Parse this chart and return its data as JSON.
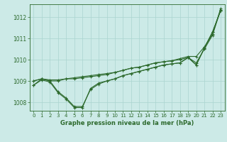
{
  "background_color": "#cceae7",
  "grid_color": "#aad4d0",
  "line_color": "#2d6a2d",
  "xlabel": "Graphe pression niveau de la mer (hPa)",
  "xlim": [
    -0.5,
    23.5
  ],
  "ylim": [
    1007.6,
    1012.6
  ],
  "yticks": [
    1008,
    1009,
    1010,
    1011,
    1012
  ],
  "xticks": [
    0,
    1,
    2,
    3,
    4,
    5,
    6,
    7,
    8,
    9,
    10,
    11,
    12,
    13,
    14,
    15,
    16,
    17,
    18,
    19,
    20,
    21,
    22,
    23
  ],
  "series": [
    [
      1009.0,
      1009.1,
      1009.0,
      1009.0,
      1009.1,
      1009.1,
      1009.15,
      1009.2,
      1009.25,
      1009.3,
      1009.4,
      1009.5,
      1009.6,
      1009.65,
      1009.75,
      1009.85,
      1009.9,
      1009.95,
      1010.0,
      1010.1,
      1009.85,
      1010.5,
      1011.15,
      1012.35
    ],
    [
      1008.8,
      1009.1,
      1009.0,
      1008.5,
      1008.2,
      1007.8,
      1007.8,
      1008.6,
      1008.85,
      1009.0,
      1009.1,
      1009.25,
      1009.35,
      1009.45,
      1009.55,
      1009.65,
      1009.75,
      1009.8,
      1009.85,
      1010.1,
      1009.75,
      1010.55,
      1011.3,
      1012.3
    ],
    [
      1008.8,
      1009.05,
      1008.95,
      1008.45,
      1008.15,
      1007.75,
      1007.75,
      1008.65,
      1008.9,
      1009.0,
      1009.1,
      1009.25,
      1009.35,
      1009.45,
      1009.55,
      1009.65,
      1009.75,
      1009.8,
      1009.85,
      1010.1,
      1009.75,
      1010.55,
      1011.3,
      1012.3
    ],
    [
      1009.0,
      1009.1,
      1009.05,
      1009.05,
      1009.1,
      1009.15,
      1009.2,
      1009.25,
      1009.3,
      1009.35,
      1009.4,
      1009.5,
      1009.6,
      1009.65,
      1009.75,
      1009.85,
      1009.9,
      1009.95,
      1010.05,
      1010.15,
      1010.15,
      1010.6,
      1011.2,
      1012.4
    ]
  ]
}
